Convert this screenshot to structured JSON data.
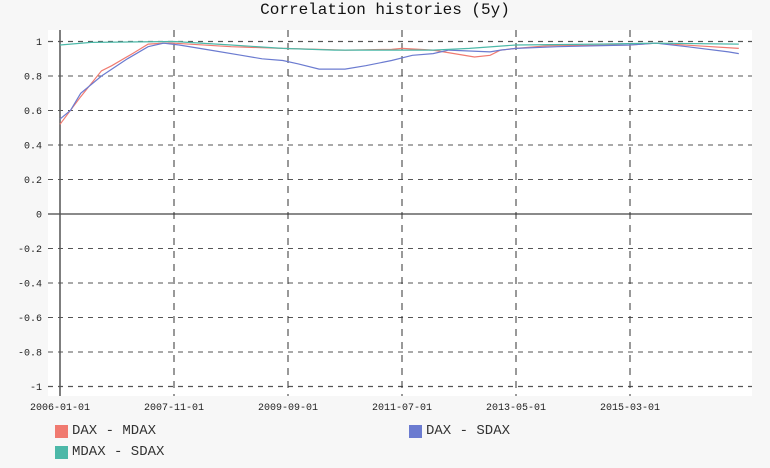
{
  "chart_data": {
    "type": "line",
    "title": "Correlation histories (5y)",
    "xlabel": "",
    "ylabel": "",
    "ylim": [
      -1,
      1
    ],
    "xlim": [
      "2006-01",
      "2017-03"
    ],
    "y_ticks": [
      "1",
      "0.8",
      "0.6",
      "0.4",
      "0.2",
      "0",
      "-0.2",
      "-0.4",
      "-0.6",
      "-0.8",
      "-1"
    ],
    "y_tick_values": [
      1,
      0.8,
      0.6,
      0.4,
      0.2,
      0,
      -0.2,
      -0.4,
      -0.6,
      -0.8,
      -1
    ],
    "x_ticks": [
      "2006-01-01",
      "2007-11-01",
      "2009-09-01",
      "2011-07-01",
      "2013-05-01",
      "2015-03-01"
    ],
    "grid": true,
    "legend_placement": "bottom",
    "series": [
      {
        "name": "DAX - MDAX",
        "color": "#f07a70",
        "x": [
          "2006-01",
          "2006-05",
          "2006-09",
          "2006-11",
          "2007-03",
          "2007-06",
          "2007-09",
          "2007-11",
          "2008-10",
          "2009-08",
          "2010-08",
          "2011-05",
          "2011-07",
          "2012-01",
          "2012-09",
          "2012-12",
          "2013-02",
          "2013-05",
          "2013-11",
          "2015-03",
          "2015-08",
          "2016-04",
          "2016-12"
        ],
        "y": [
          0.52,
          0.68,
          0.83,
          0.86,
          0.93,
          0.985,
          0.99,
          0.99,
          0.97,
          0.96,
          0.95,
          0.955,
          0.96,
          0.95,
          0.91,
          0.92,
          0.95,
          0.96,
          0.975,
          0.98,
          0.99,
          0.975,
          0.96
        ]
      },
      {
        "name": "DAX - SDAX",
        "color": "#6b7bd0",
        "x": [
          "2006-01",
          "2006-03",
          "2006-05",
          "2006-09",
          "2007-02",
          "2007-06",
          "2007-09",
          "2007-12",
          "2008-06",
          "2008-12",
          "2009-04",
          "2009-08",
          "2009-11",
          "2010-03",
          "2010-08",
          "2010-12",
          "2011-05",
          "2011-09",
          "2012-01",
          "2012-04",
          "2012-12",
          "2013-02",
          "2013-05",
          "2014-01",
          "2015-03",
          "2015-08",
          "2016-02",
          "2016-10",
          "2016-12"
        ],
        "y": [
          0.55,
          0.6,
          0.7,
          0.8,
          0.9,
          0.97,
          0.99,
          0.98,
          0.95,
          0.92,
          0.9,
          0.89,
          0.87,
          0.84,
          0.84,
          0.86,
          0.89,
          0.92,
          0.93,
          0.95,
          0.94,
          0.95,
          0.96,
          0.97,
          0.98,
          0.99,
          0.97,
          0.94,
          0.93
        ]
      },
      {
        "name": "MDAX - SDAX",
        "color": "#4cb8a8",
        "x": [
          "2006-01",
          "2006-07",
          "2007-11",
          "2008-10",
          "2009-08",
          "2010-06",
          "2011-04",
          "2012-01",
          "2012-08",
          "2013-05",
          "2014-09",
          "2015-08",
          "2016-12"
        ],
        "y": [
          0.98,
          0.995,
          1.0,
          0.98,
          0.96,
          0.95,
          0.95,
          0.95,
          0.96,
          0.98,
          0.985,
          0.99,
          0.985
        ]
      }
    ]
  }
}
